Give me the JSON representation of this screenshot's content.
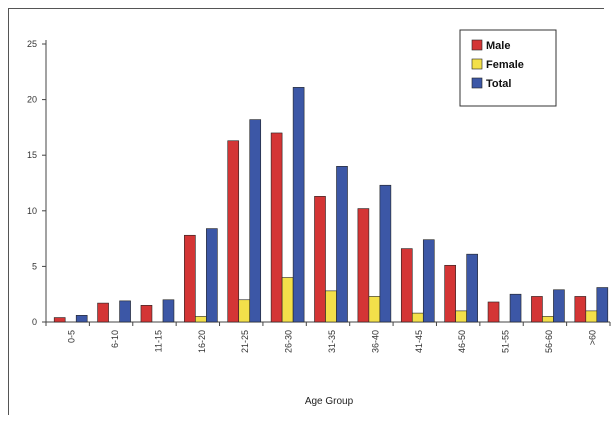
{
  "chart_data": {
    "type": "bar",
    "title": "",
    "xlabel": "Age Group",
    "ylabel": "",
    "ylim": [
      0,
      25
    ],
    "yticks": [
      0,
      5,
      10,
      15,
      20,
      25
    ],
    "grid": false,
    "legend_position": "top-right",
    "categories": [
      "0-5",
      "6-10",
      "11-15",
      "16-20",
      "21-25",
      "26-30",
      "31-35",
      "36-40",
      "41-45",
      "46-50",
      "51-55",
      "56-60",
      ">60"
    ],
    "series": [
      {
        "name": "Male",
        "color": "#d43535",
        "values": [
          0.4,
          1.7,
          1.5,
          7.8,
          16.3,
          17.0,
          11.3,
          10.2,
          6.6,
          5.1,
          1.8,
          2.3,
          2.3
        ]
      },
      {
        "name": "Female",
        "color": "#f3e04a",
        "values": [
          0.0,
          0.0,
          0.0,
          0.5,
          2.0,
          4.0,
          2.8,
          2.3,
          0.8,
          1.0,
          0.0,
          0.5,
          1.0
        ]
      },
      {
        "name": "Total",
        "color": "#3c57a6",
        "values": [
          0.6,
          1.9,
          2.0,
          8.4,
          18.2,
          21.1,
          14.0,
          12.3,
          7.4,
          6.1,
          2.5,
          2.9,
          3.1
        ]
      }
    ]
  }
}
